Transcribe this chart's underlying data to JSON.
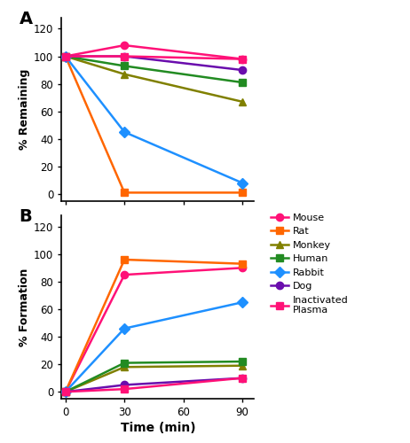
{
  "time": [
    0,
    30,
    90
  ],
  "panel_A": {
    "ylabel": "% Remaining",
    "ylim": [
      -5,
      128
    ],
    "yticks": [
      0,
      20,
      40,
      60,
      80,
      100,
      120
    ],
    "series": {
      "Mouse": {
        "values": [
          100,
          108,
          98
        ],
        "color": "#FF1177",
        "marker": "o"
      },
      "Rat": {
        "values": [
          100,
          1,
          1
        ],
        "color": "#FF6600",
        "marker": "s"
      },
      "Monkey": {
        "values": [
          100,
          87,
          67
        ],
        "color": "#808000",
        "marker": "^"
      },
      "Human": {
        "values": [
          100,
          93,
          81
        ],
        "color": "#228B22",
        "marker": "s"
      },
      "Rabbit": {
        "values": [
          100,
          45,
          8
        ],
        "color": "#1E90FF",
        "marker": "D"
      },
      "Dog": {
        "values": [
          100,
          100,
          90
        ],
        "color": "#6A0DAD",
        "marker": "o"
      },
      "Inactivated Plasma": {
        "values": [
          100,
          100,
          98
        ],
        "color": "#FF1177",
        "marker": "s"
      }
    }
  },
  "panel_B": {
    "ylabel": "% Formation",
    "ylim": [
      -5,
      128
    ],
    "yticks": [
      0,
      20,
      40,
      60,
      80,
      100,
      120
    ],
    "series": {
      "Mouse": {
        "values": [
          0,
          85,
          90
        ],
        "color": "#FF1177",
        "marker": "o"
      },
      "Rat": {
        "values": [
          0,
          96,
          93
        ],
        "color": "#FF6600",
        "marker": "s"
      },
      "Monkey": {
        "values": [
          0,
          18,
          19
        ],
        "color": "#808000",
        "marker": "^"
      },
      "Human": {
        "values": [
          0,
          21,
          22
        ],
        "color": "#228B22",
        "marker": "s"
      },
      "Rabbit": {
        "values": [
          0,
          46,
          65
        ],
        "color": "#1E90FF",
        "marker": "D"
      },
      "Dog": {
        "values": [
          0,
          5,
          10
        ],
        "color": "#6A0DAD",
        "marker": "o"
      },
      "Inactivated Plasma": {
        "values": [
          0,
          2,
          10
        ],
        "color": "#FF1177",
        "marker": "s"
      }
    }
  },
  "xlabel": "Time (min)",
  "xticks": [
    0,
    30,
    60,
    90
  ],
  "legend_order": [
    "Mouse",
    "Rat",
    "Monkey",
    "Human",
    "Rabbit",
    "Dog",
    "Inactivated Plasma"
  ],
  "linewidth": 1.8,
  "markersize": 6
}
